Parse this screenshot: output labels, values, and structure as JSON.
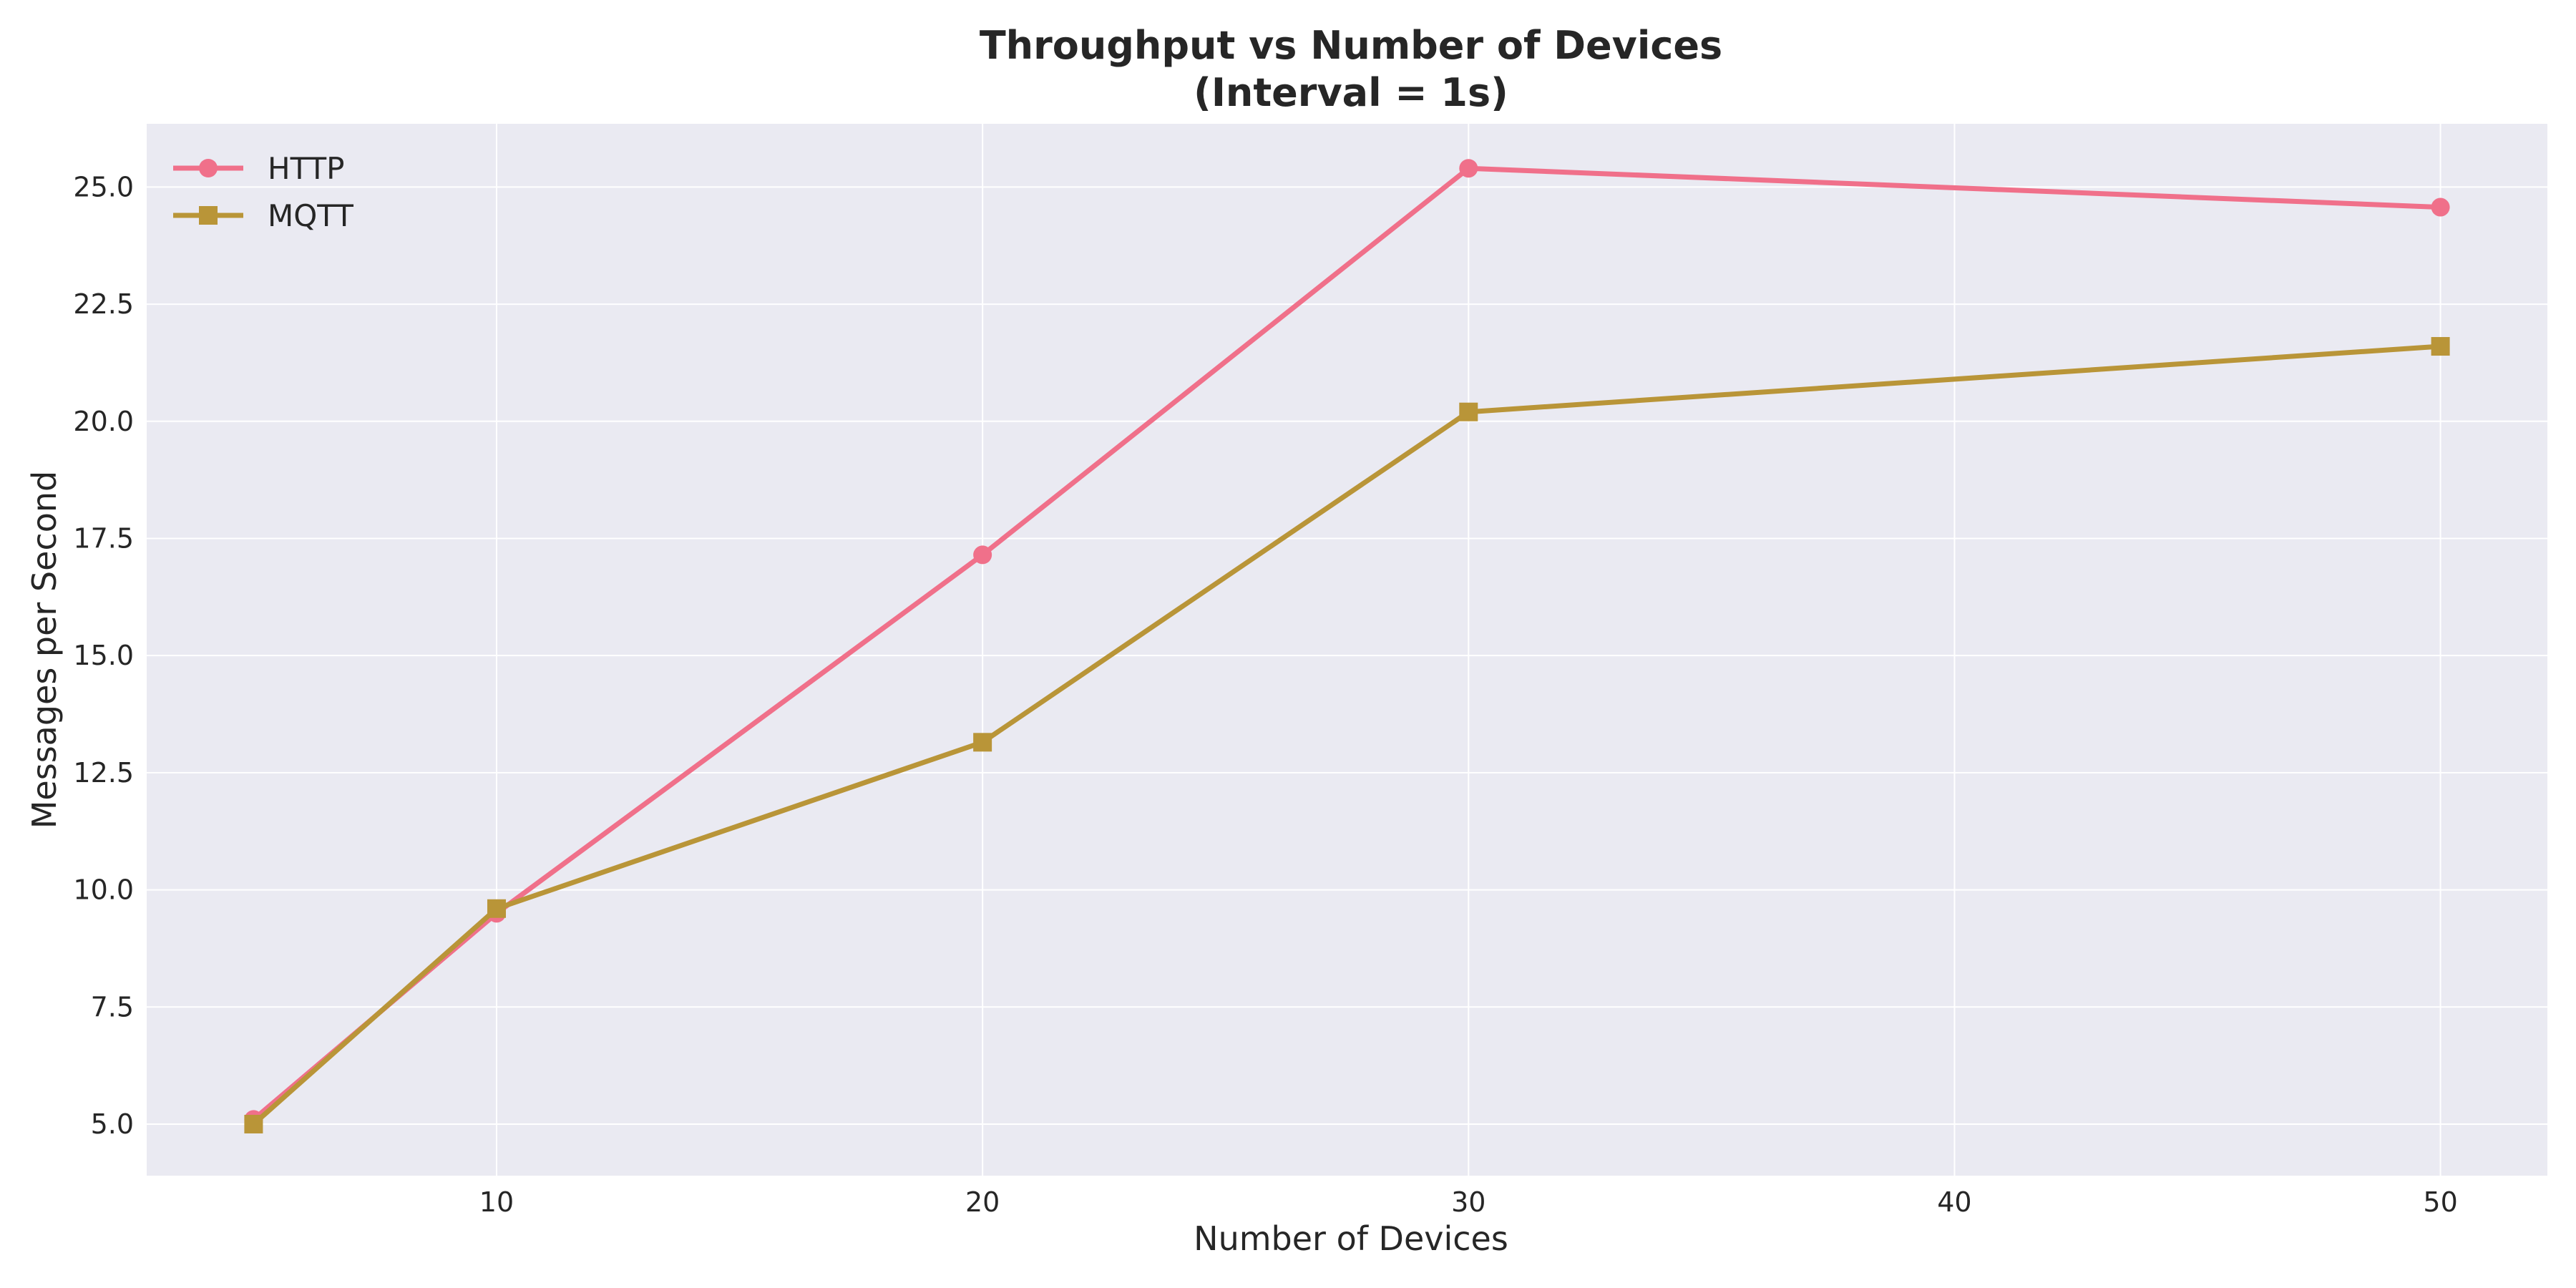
{
  "chart_data": {
    "type": "line",
    "title_line1": "Throughput vs Number of Devices",
    "title_line2": "(Interval = 1s)",
    "xlabel": "Number of Devices",
    "ylabel": "Messages per Second",
    "xlim": [
      2.8,
      52.2
    ],
    "ylim": [
      3.9,
      26.35
    ],
    "xticks": [
      10,
      20,
      30,
      40,
      50
    ],
    "yticks": [
      5.0,
      7.5,
      10.0,
      12.5,
      15.0,
      17.5,
      20.0,
      22.5,
      25.0
    ],
    "grid": true,
    "legend_position": "top-left",
    "x": [
      5,
      10,
      20,
      30,
      50
    ],
    "series": [
      {
        "name": "HTTP",
        "values": [
          5.1,
          9.5,
          17.15,
          25.4,
          24.57
        ],
        "color": "#f0708a",
        "marker": "circle"
      },
      {
        "name": "MQTT",
        "values": [
          5.0,
          9.6,
          13.15,
          20.2,
          21.6
        ],
        "color": "#b99538",
        "marker": "square"
      }
    ],
    "colors": {
      "plot_background": "#eaeaf2",
      "grid": "#ffffff",
      "text": "#262626"
    }
  }
}
